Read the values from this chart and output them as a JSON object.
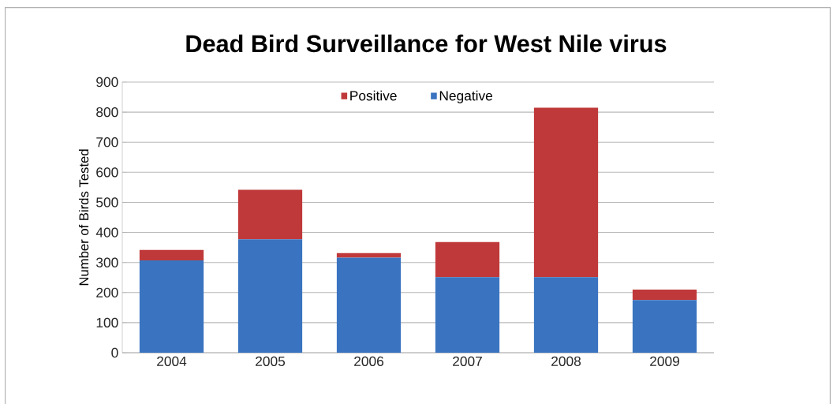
{
  "chart_data": {
    "type": "bar",
    "stacked": true,
    "title": "Dead Bird Surveillance for West Nile virus",
    "ylabel": "Number of Birds Tested",
    "categories": [
      "2004",
      "2005",
      "2006",
      "2007",
      "2008",
      "2009"
    ],
    "series": [
      {
        "name": "Negative",
        "color": "#3a74c0",
        "values": [
          307,
          377,
          316,
          251,
          251,
          175
        ]
      },
      {
        "name": "Positive",
        "color": "#c0393a",
        "values": [
          35,
          165,
          15,
          117,
          564,
          35
        ]
      }
    ],
    "ylim": [
      0,
      900
    ],
    "yticks": [
      0,
      100,
      200,
      300,
      400,
      500,
      600,
      700,
      800,
      900
    ],
    "grid": "y",
    "legend": "top"
  }
}
